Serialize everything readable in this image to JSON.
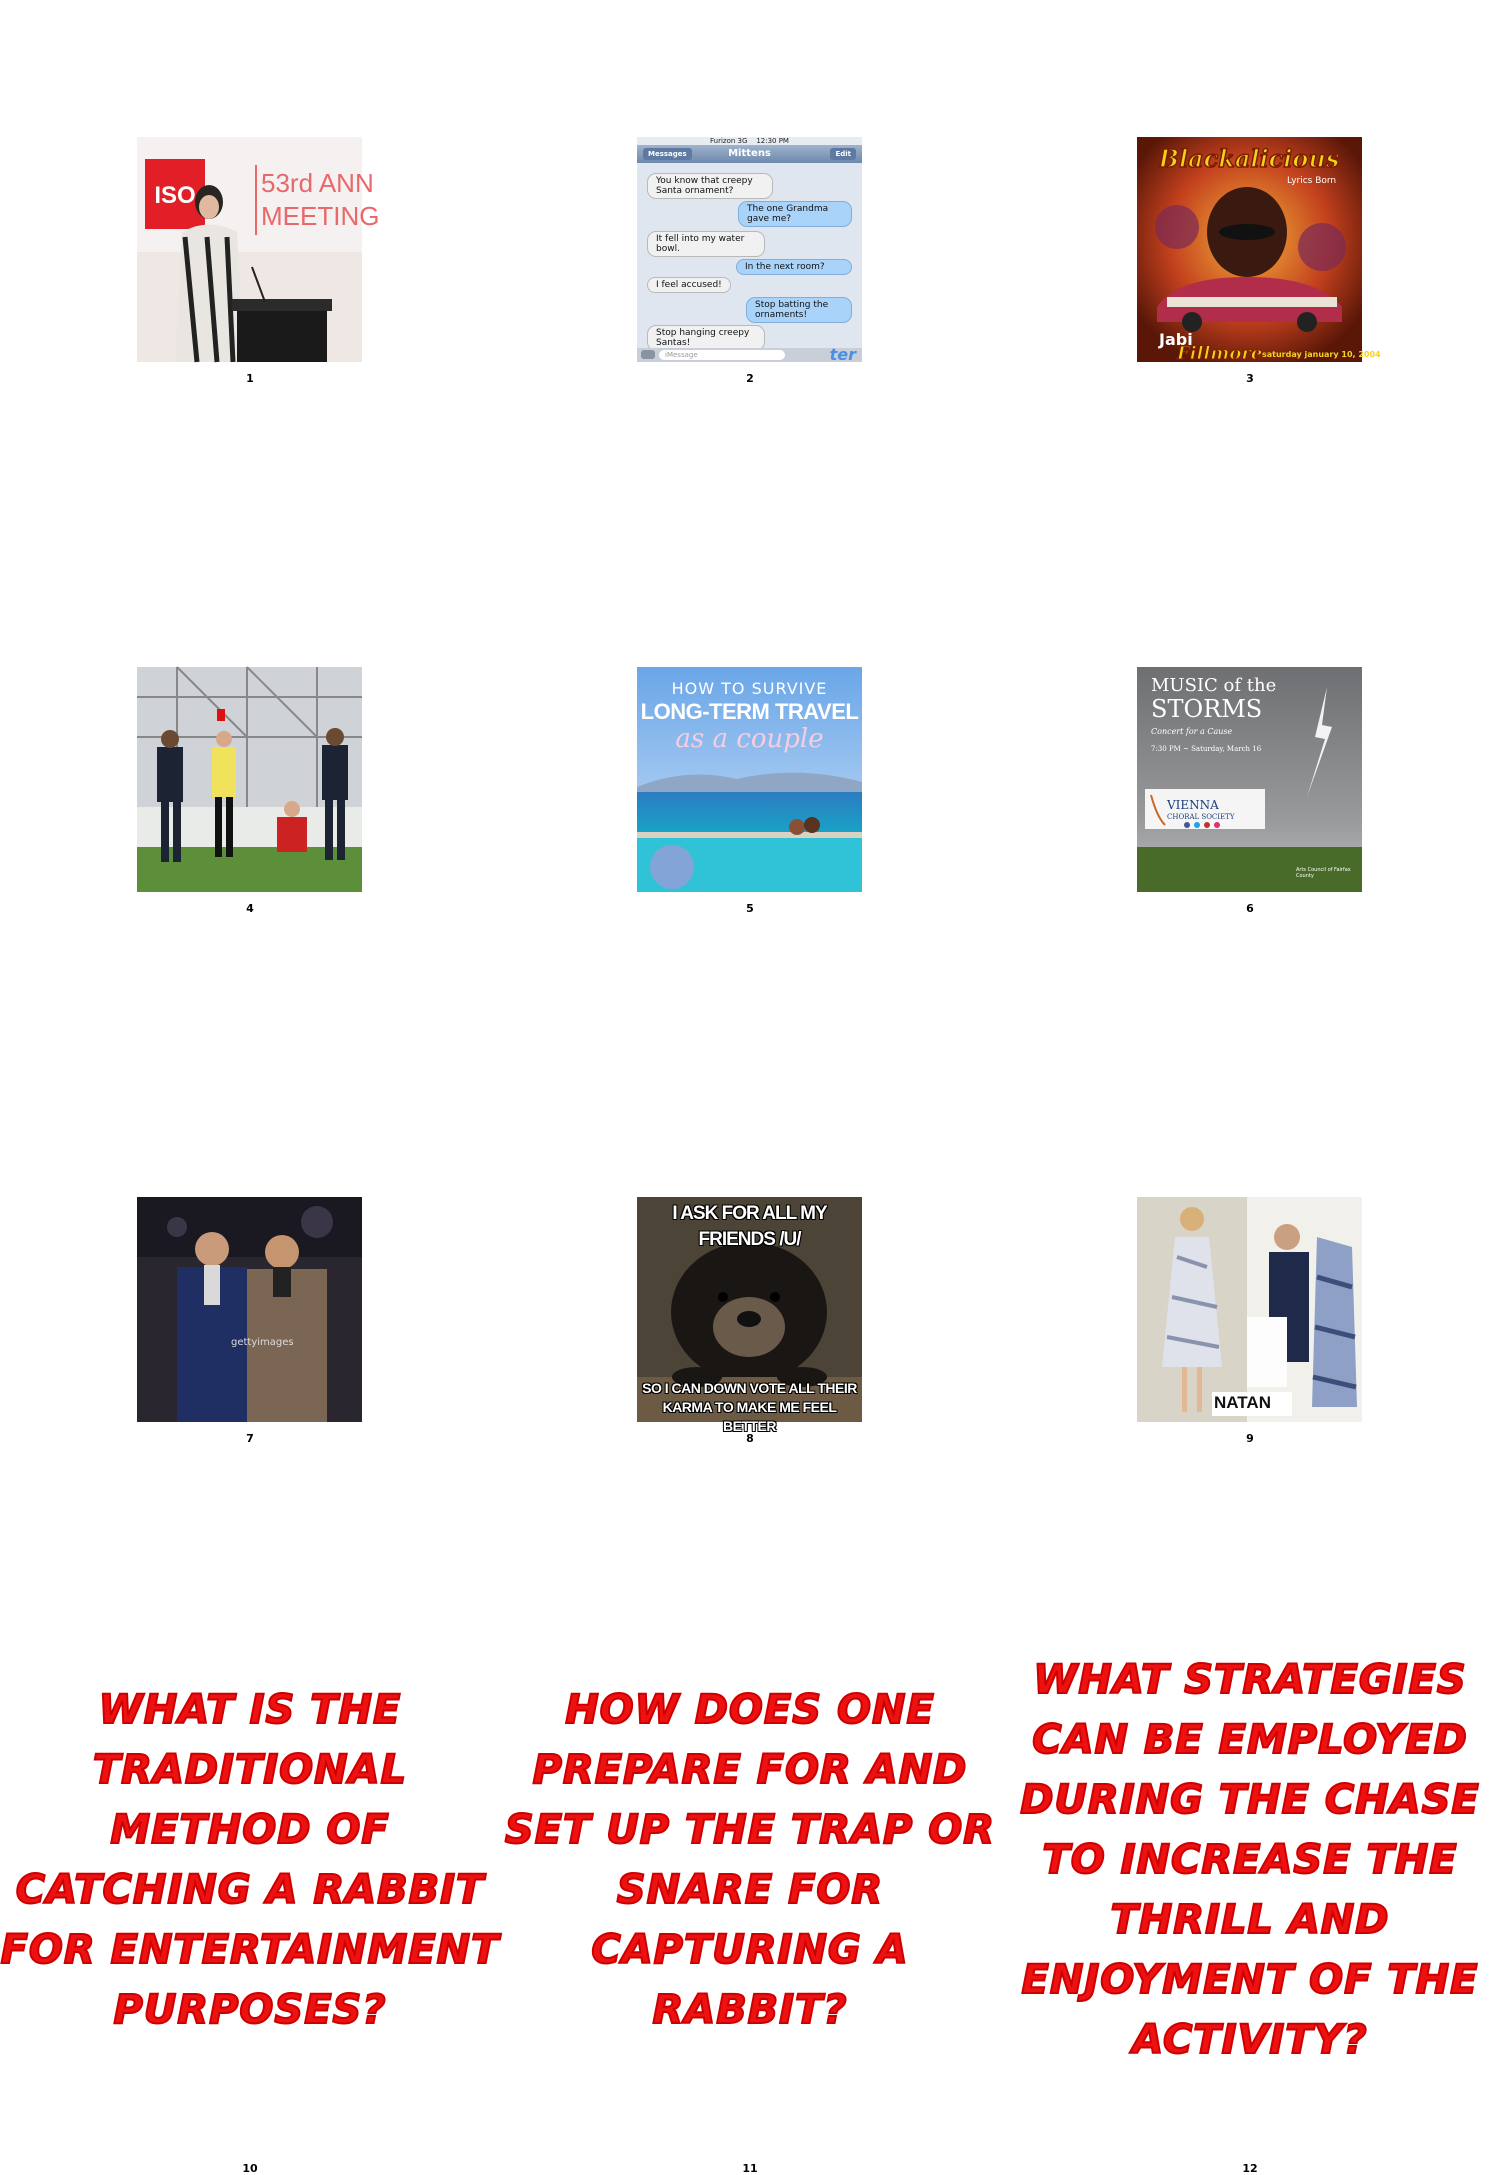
{
  "cells": [
    {
      "label": "1",
      "image_desc": "speaker-at-podium",
      "sign_text": "53rd ANN MEETING",
      "logo": "ISO"
    },
    {
      "label": "2",
      "chat": {
        "status_carrier": "Furizon 3G",
        "status_time": "12:30 PM",
        "back": "Messages",
        "title": "Mittens",
        "edit": "Edit",
        "messages": [
          {
            "side": "l",
            "text": "You know that creepy Santa ornament?"
          },
          {
            "side": "r",
            "text": "The one Grandma gave me?"
          },
          {
            "side": "l",
            "text": "It fell into my water bowl."
          },
          {
            "side": "r",
            "text": "In the next room?"
          },
          {
            "side": "l",
            "text": "I feel accused!"
          },
          {
            "side": "r",
            "text": "Stop batting the ornaments!"
          },
          {
            "side": "l",
            "text": "Stop hanging creepy Santas!"
          }
        ],
        "input_placeholder": "iMessage",
        "watermark": "ter"
      }
    },
    {
      "label": "3",
      "poster_title": "Blackalicious",
      "poster_sub": "Lyrics Born",
      "poster_venue": "Fillmore",
      "poster_date": "saturday january 10, 2004",
      "poster_extra": "Jabi"
    },
    {
      "label": "4",
      "image_desc": "football-referee-red-card"
    },
    {
      "label": "5",
      "line1": "HOW TO SURVIVE",
      "line2": "LONG-TERM TRAVEL",
      "line3": "as a couple"
    },
    {
      "label": "6",
      "title1": "MUSIC of the",
      "title2": "STORMS",
      "sub1": "Concert for a Cause",
      "sub2": "7:30 PM ~ Saturday, March 16",
      "org1": "VIENNA",
      "org2": "CHORAL SOCIETY",
      "footer": "Arts Council of Fairfax County"
    },
    {
      "label": "7",
      "watermark": "gettyimages"
    },
    {
      "label": "8",
      "top_text": "I ASK FOR ALL MY FRIENDS /U/",
      "bottom_text": "SO I CAN DOWN VOTE ALL THEIR KARMA TO MAKE ME FEEL BETTER"
    },
    {
      "label": "9",
      "brand": "NATAN"
    }
  ],
  "questions": [
    {
      "label": "10",
      "text": "WHAT IS THE TRADITIONAL METHOD OF CATCHING A RABBIT FOR ENTERTAINMENT PURPOSES?"
    },
    {
      "label": "11",
      "text": "HOW DOES ONE PREPARE FOR AND SET UP THE TRAP OR SNARE FOR CAPTURING A RABBIT?"
    },
    {
      "label": "12",
      "text": "WHAT STRATEGIES CAN BE EMPLOYED DURING THE CHASE TO INCREASE THE THRILL AND ENJOYMENT OF THE ACTIVITY?"
    }
  ],
  "colors": {
    "question_red": "#ee1111"
  }
}
